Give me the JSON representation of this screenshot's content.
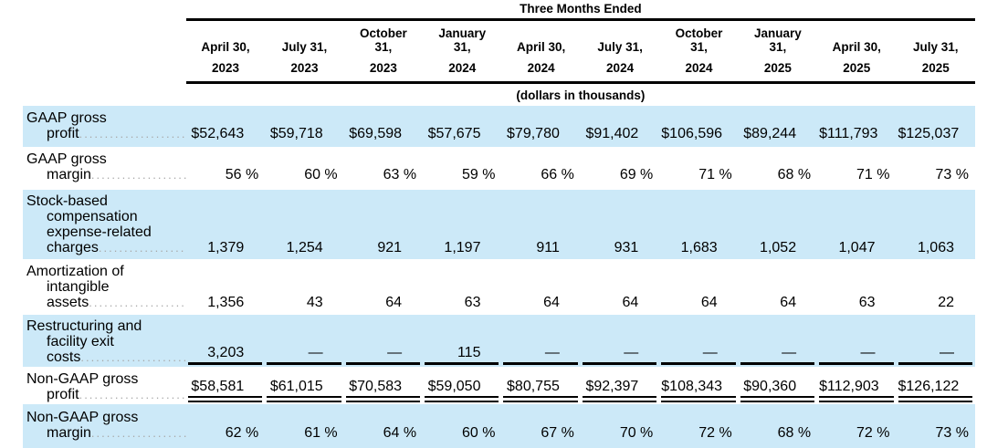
{
  "table": {
    "title": "Three Months Ended",
    "units_note": "(dollars in thousands)",
    "columns": [
      {
        "date": "April 30,",
        "year": "2023"
      },
      {
        "date": "July 31,",
        "year": "2023"
      },
      {
        "date": "October\n31,",
        "year": "2023"
      },
      {
        "date": "January\n31,",
        "year": "2024"
      },
      {
        "date": "April 30,",
        "year": "2024"
      },
      {
        "date": "July 31,",
        "year": "2024"
      },
      {
        "date": "October\n31,",
        "year": "2024"
      },
      {
        "date": "January\n31,",
        "year": "2025"
      },
      {
        "date": "April 30,",
        "year": "2025"
      },
      {
        "date": "July 31,",
        "year": "2025"
      }
    ],
    "rows": [
      {
        "label": "GAAP gross profit",
        "values": [
          "$52,643",
          "$59,718",
          "$69,598",
          "$57,675",
          "$79,780",
          "$91,402",
          "$106,596",
          "$89,244",
          "$111,793",
          "$125,037"
        ]
      },
      {
        "label": "GAAP gross margin",
        "values": [
          "56 %",
          "60 %",
          "63 %",
          "59 %",
          "66 %",
          "69 %",
          "71 %",
          "68 %",
          "71 %",
          "73 %"
        ]
      },
      {
        "label": "Stock-based compensation expense-related charges",
        "values": [
          "1,379",
          "1,254",
          "921",
          "1,197",
          "911",
          "931",
          "1,683",
          "1,052",
          "1,047",
          "1,063"
        ]
      },
      {
        "label": "Amortization of intangible assets",
        "values": [
          "1,356",
          "43",
          "64",
          "63",
          "64",
          "64",
          "64",
          "64",
          "63",
          "22"
        ]
      },
      {
        "label": "Restructuring and facility exit costs",
        "values": [
          "3,203",
          "—",
          "—",
          "115",
          "—",
          "—",
          "—",
          "—",
          "—",
          "—"
        ]
      },
      {
        "label": "Non-GAAP gross profit",
        "values": [
          "$58,581",
          "$61,015",
          "$70,583",
          "$59,050",
          "$80,755",
          "$92,397",
          "$108,343",
          "$90,360",
          "$112,903",
          "$126,122"
        ]
      },
      {
        "label": "Non-GAAP gross margin",
        "values": [
          "62 %",
          "61 %",
          "64 %",
          "60 %",
          "67 %",
          "70 %",
          "72 %",
          "68 %",
          "72 %",
          "73 %"
        ]
      }
    ]
  },
  "colors": {
    "row_highlight": "#cce9f8",
    "text": "#000000",
    "rules": "#000000",
    "leader_dots": "#a8a8a8"
  }
}
